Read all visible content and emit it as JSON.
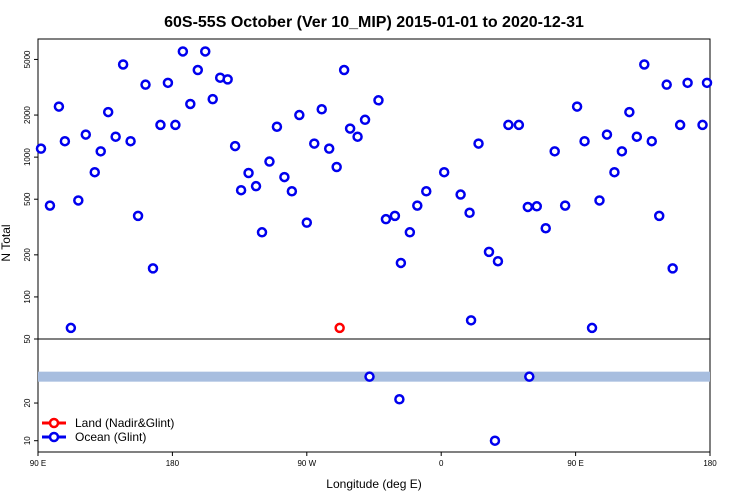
{
  "chart_data": {
    "type": "scatter",
    "title": "60S-55S October (Ver 10_MIP)   2015-01-01 to 2020-12-31",
    "xlabel": "Longitude (deg E)",
    "ylabel": "N Total",
    "x_ticks": [
      {
        "value": 90,
        "label": "90 E"
      },
      {
        "value": 180,
        "label": "180"
      },
      {
        "value": 270,
        "label": "90 W"
      },
      {
        "value": 360,
        "label": "0"
      },
      {
        "value": 450,
        "label": "90 E"
      },
      {
        "value": 540,
        "label": "180"
      }
    ],
    "xlim": [
      90,
      540
    ],
    "upper_panel": {
      "scale": "log",
      "ylim": [
        50,
        7000
      ],
      "y_ticks": [
        50,
        100,
        200,
        500,
        1000,
        2000,
        5000
      ]
    },
    "lower_panel": {
      "scale": "linear",
      "ylim": [
        7,
        37
      ],
      "y_ticks": [
        10,
        20
      ],
      "band": {
        "y": 27,
        "color": "#a8bedf"
      }
    },
    "series": [
      {
        "name": "Land (Nadir&Glint)",
        "color": "#ff0000",
        "points": [
          [
            292,
            60
          ]
        ]
      },
      {
        "name": "Ocean (Glint)",
        "color": "#0000ee",
        "points": [
          [
            92,
            1150
          ],
          [
            98,
            450
          ],
          [
            104,
            2300
          ],
          [
            108,
            1300
          ],
          [
            112,
            60
          ],
          [
            117,
            490
          ],
          [
            122,
            1450
          ],
          [
            128,
            780
          ],
          [
            132,
            1100
          ],
          [
            137,
            2100
          ],
          [
            142,
            1400
          ],
          [
            147,
            4600
          ],
          [
            152,
            1300
          ],
          [
            157,
            380
          ],
          [
            162,
            3300
          ],
          [
            167,
            160
          ],
          [
            172,
            1700
          ],
          [
            177,
            3400
          ],
          [
            182,
            1700
          ],
          [
            187,
            5700
          ],
          [
            192,
            2400
          ],
          [
            197,
            4200
          ],
          [
            202,
            5700
          ],
          [
            207,
            2600
          ],
          [
            212,
            3700
          ],
          [
            217,
            3600
          ],
          [
            222,
            1200
          ],
          [
            226,
            580
          ],
          [
            231,
            770
          ],
          [
            236,
            620
          ],
          [
            240,
            290
          ],
          [
            245,
            930
          ],
          [
            250,
            1650
          ],
          [
            255,
            720
          ],
          [
            260,
            570
          ],
          [
            265,
            2000
          ],
          [
            270,
            340
          ],
          [
            275,
            1250
          ],
          [
            280,
            2200
          ],
          [
            285,
            1150
          ],
          [
            290,
            850
          ],
          [
            295,
            4200
          ],
          [
            299,
            1600
          ],
          [
            304,
            1400
          ],
          [
            309,
            1850
          ],
          [
            318,
            2550
          ],
          [
            323,
            360
          ],
          [
            329,
            380
          ],
          [
            333,
            175
          ],
          [
            339,
            290
          ],
          [
            344,
            450
          ],
          [
            350,
            570
          ],
          [
            362,
            780
          ],
          [
            373,
            540
          ],
          [
            379,
            400
          ],
          [
            385,
            1250
          ],
          [
            392,
            210
          ],
          [
            398,
            180
          ],
          [
            405,
            1700
          ],
          [
            412,
            1700
          ],
          [
            418,
            440
          ],
          [
            424,
            445
          ],
          [
            430,
            310
          ],
          [
            436,
            1100
          ],
          [
            443,
            450
          ],
          [
            451,
            2300
          ],
          [
            456,
            1300
          ],
          [
            461,
            60
          ],
          [
            466,
            490
          ],
          [
            471,
            1450
          ],
          [
            476,
            780
          ],
          [
            481,
            1100
          ],
          [
            486,
            2100
          ],
          [
            491,
            1400
          ],
          [
            496,
            4600
          ],
          [
            501,
            1300
          ],
          [
            506,
            380
          ],
          [
            511,
            3300
          ],
          [
            515,
            160
          ],
          [
            520,
            1700
          ],
          [
            525,
            3400
          ],
          [
            535,
            1700
          ],
          [
            538,
            3400
          ],
          [
            312,
            27
          ],
          [
            332,
            21
          ],
          [
            380,
            68
          ],
          [
            396,
            10
          ],
          [
            419,
            27
          ]
        ]
      }
    ],
    "legend": {
      "placement": "bottom-left"
    }
  }
}
